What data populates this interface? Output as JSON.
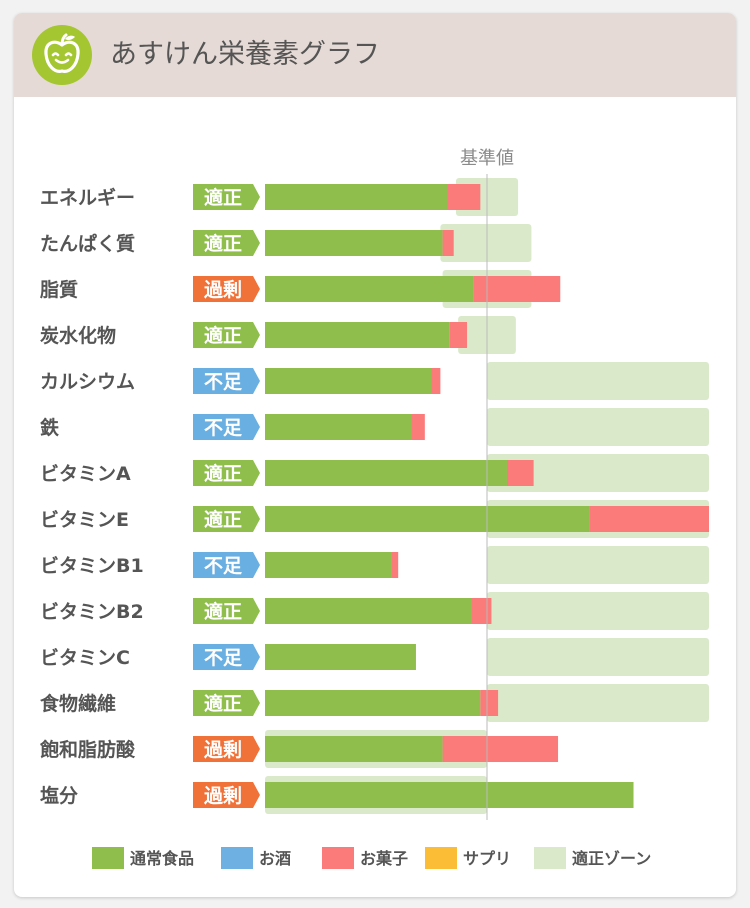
{
  "header": {
    "title": "あすけん栄養素グラフ",
    "logo_icon": "apple-face-icon",
    "accent_color": "#a4c630"
  },
  "chart_data": {
    "type": "bar",
    "stacked": true,
    "orientation": "horizontal",
    "reference_label": "基準値",
    "reference_value": 100,
    "x_unit": "% of 基準値",
    "categories": [
      "エネルギー",
      "たんぱく質",
      "脂質",
      "炭水化物",
      "カルシウム",
      "鉄",
      "ビタミンA",
      "ビタミンE",
      "ビタミンB1",
      "ビタミンB2",
      "ビタミンC",
      "食物繊維",
      "飽和脂肪酸",
      "塩分"
    ],
    "status": [
      "適正",
      "適正",
      "過剰",
      "適正",
      "不足",
      "不足",
      "適正",
      "適正",
      "不足",
      "適正",
      "不足",
      "適正",
      "過剰",
      "過剰"
    ],
    "status_colors": {
      "適正": "#8fbe4c",
      "不足": "#6aafe1",
      "過剰": "#f07238"
    },
    "series": [
      {
        "name": "通常食品",
        "color": "#8fbe4c",
        "values": [
          82,
          80,
          94,
          83,
          75,
          66,
          109,
          146,
          57,
          93,
          68,
          97,
          80,
          166
        ]
      },
      {
        "name": "お酒",
        "color": "#6eb0e2",
        "values": [
          0,
          0,
          0,
          0,
          0,
          0,
          0,
          0,
          0,
          0,
          0,
          0,
          0,
          0
        ]
      },
      {
        "name": "お菓子",
        "color": "#fb7a7a",
        "values": [
          15,
          5,
          39,
          8,
          4,
          6,
          12,
          54,
          3,
          9,
          0,
          8,
          52,
          0
        ]
      },
      {
        "name": "サプリ",
        "color": "#fbbd36",
        "values": [
          0,
          0,
          0,
          0,
          0,
          0,
          0,
          0,
          0,
          0,
          0,
          0,
          0,
          0
        ]
      }
    ],
    "adequate_zone": {
      "name": "適正ゾーン",
      "color": "#dbe9cb",
      "ranges": [
        [
          86,
          114
        ],
        [
          79,
          120
        ],
        [
          80,
          120
        ],
        [
          87,
          113
        ],
        [
          100,
          200
        ],
        [
          100,
          200
        ],
        [
          100,
          200
        ],
        [
          100,
          200
        ],
        [
          100,
          200
        ],
        [
          100,
          200
        ],
        [
          100,
          200
        ],
        [
          100,
          200
        ],
        [
          0,
          100
        ],
        [
          0,
          100
        ]
      ]
    },
    "xlim": [
      0,
      200
    ],
    "legend_position": "bottom"
  }
}
